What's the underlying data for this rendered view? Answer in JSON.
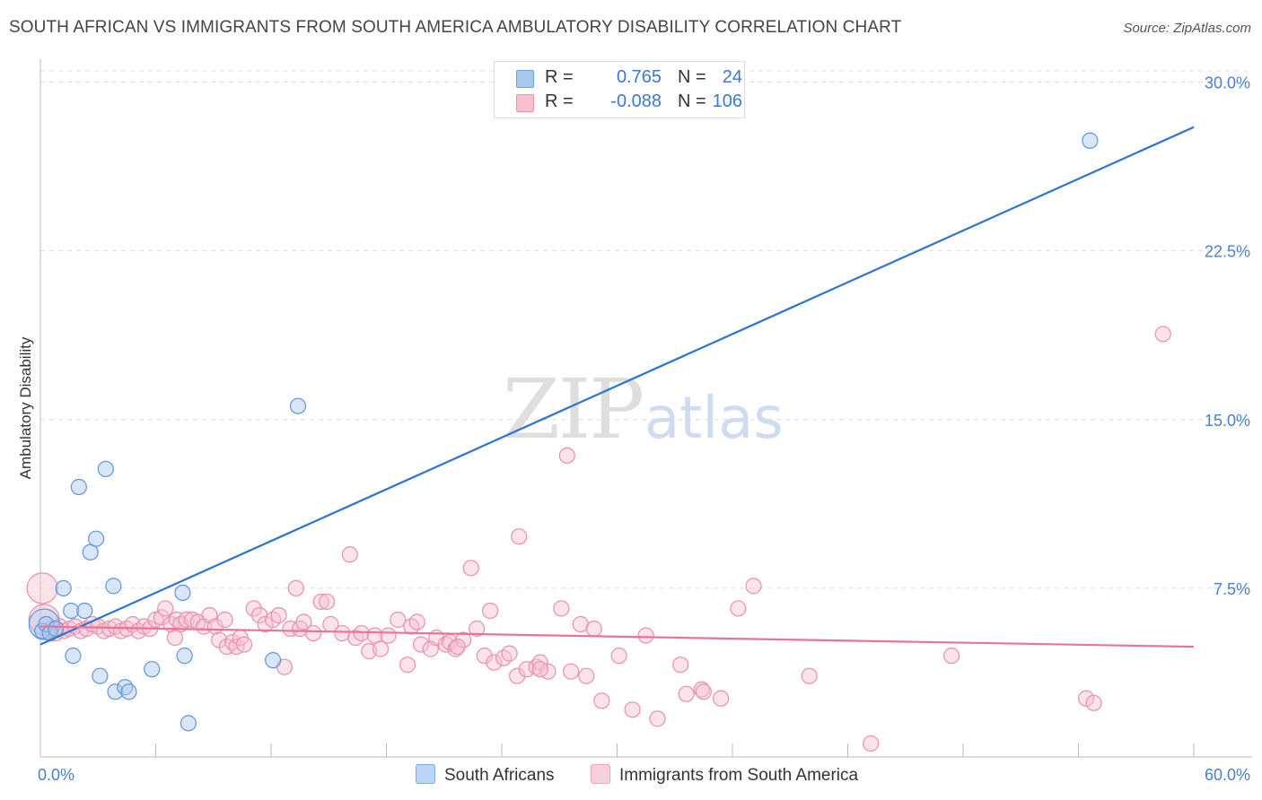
{
  "title": "SOUTH AFRICAN VS IMMIGRANTS FROM SOUTH AMERICA AMBULATORY DISABILITY CORRELATION CHART",
  "source": "Source: ZipAtlas.com",
  "watermark": {
    "zip": "ZIP",
    "atlas": "atlas"
  },
  "legend": {
    "r_label": "R =",
    "n_label": "N =",
    "rows": [
      {
        "r": "0.765",
        "n": "24",
        "color": "#a9c8f0",
        "border": "#6f9fe0"
      },
      {
        "r": "-0.088",
        "n": "106",
        "color": "#f7bfd0",
        "border": "#ee93ae"
      }
    ]
  },
  "bottom_legend": [
    {
      "label": "South Africans",
      "color": "#bcd4f5",
      "border": "#7ea8e6"
    },
    {
      "label": "Immigrants from South America",
      "color": "#f9cfdb",
      "border": "#f0a3bb"
    }
  ],
  "chart_data": {
    "type": "scatter",
    "title": "SOUTH AFRICAN VS IMMIGRANTS FROM SOUTH AMERICA AMBULATORY DISABILITY CORRELATION CHART",
    "xlabel": "",
    "ylabel": "Ambulatory Disability",
    "xlim": [
      0,
      60
    ],
    "ylim": [
      0,
      30.5
    ],
    "x_tick_labels": [
      "0.0%",
      "60.0%"
    ],
    "y_ticks": [
      7.5,
      15.0,
      22.5,
      30.0
    ],
    "y_tick_labels": [
      "7.5%",
      "15.0%",
      "22.5%",
      "30.0%"
    ],
    "colors": {
      "blue_fill": "#a9c8f0",
      "blue_stroke": "#5f95db",
      "blue_line": "#2c74d0",
      "pink_fill": "#f7c0d1",
      "pink_stroke": "#ea8fac",
      "pink_line": "#e7739c",
      "grid": "#dcdcdc",
      "axis": "#bbbbbb"
    },
    "series": [
      {
        "name": "South Africans",
        "color": "blue",
        "trend": {
          "x0": 0,
          "y0": 5.0,
          "x1": 60,
          "y1": 28.0
        },
        "points": [
          [
            0.1,
            5.6
          ],
          [
            0.3,
            5.9
          ],
          [
            0.5,
            5.5
          ],
          [
            0.8,
            5.7
          ],
          [
            1.2,
            7.5
          ],
          [
            1.6,
            6.5
          ],
          [
            1.7,
            4.5
          ],
          [
            2.0,
            12.0
          ],
          [
            2.3,
            6.5
          ],
          [
            2.6,
            9.1
          ],
          [
            2.9,
            9.7
          ],
          [
            3.1,
            3.6
          ],
          [
            3.4,
            12.8
          ],
          [
            3.8,
            7.6
          ],
          [
            3.9,
            2.9
          ],
          [
            4.4,
            3.1
          ],
          [
            4.6,
            2.9
          ],
          [
            5.8,
            3.9
          ],
          [
            7.4,
            7.3
          ],
          [
            7.5,
            4.5
          ],
          [
            7.7,
            1.5
          ],
          [
            12.1,
            4.3
          ],
          [
            13.4,
            15.6
          ],
          [
            54.6,
            27.4
          ]
        ],
        "big_points": [
          [
            0.2,
            5.9
          ]
        ]
      },
      {
        "name": "Immigrants from South America",
        "color": "pink",
        "trend": {
          "x0": 0,
          "y0": 5.8,
          "x1": 60,
          "y1": 4.9
        },
        "points": [
          [
            0.6,
            5.7
          ],
          [
            0.8,
            5.5
          ],
          [
            1.0,
            5.8
          ],
          [
            1.2,
            5.6
          ],
          [
            1.5,
            5.7
          ],
          [
            1.8,
            5.8
          ],
          [
            2.1,
            5.6
          ],
          [
            2.4,
            5.7
          ],
          [
            2.7,
            5.9
          ],
          [
            3.0,
            5.8
          ],
          [
            3.3,
            5.6
          ],
          [
            3.6,
            5.7
          ],
          [
            3.9,
            5.8
          ],
          [
            4.2,
            5.6
          ],
          [
            4.5,
            5.7
          ],
          [
            4.8,
            5.9
          ],
          [
            5.1,
            5.6
          ],
          [
            5.4,
            5.8
          ],
          [
            5.7,
            5.7
          ],
          [
            6.0,
            6.1
          ],
          [
            6.3,
            6.2
          ],
          [
            6.5,
            6.6
          ],
          [
            6.8,
            5.9
          ],
          [
            7.0,
            5.3
          ],
          [
            7.1,
            6.1
          ],
          [
            7.3,
            5.9
          ],
          [
            7.6,
            6.1
          ],
          [
            7.9,
            6.1
          ],
          [
            8.2,
            6.0
          ],
          [
            8.5,
            5.8
          ],
          [
            8.8,
            6.3
          ],
          [
            9.1,
            5.8
          ],
          [
            9.3,
            5.2
          ],
          [
            9.6,
            6.1
          ],
          [
            9.7,
            4.9
          ],
          [
            10.0,
            5.1
          ],
          [
            10.2,
            4.9
          ],
          [
            10.4,
            5.3
          ],
          [
            10.6,
            5.0
          ],
          [
            11.1,
            6.6
          ],
          [
            11.4,
            6.3
          ],
          [
            11.7,
            5.9
          ],
          [
            12.1,
            6.1
          ],
          [
            12.4,
            6.3
          ],
          [
            12.7,
            4.0
          ],
          [
            13.0,
            5.7
          ],
          [
            13.3,
            7.5
          ],
          [
            13.5,
            5.7
          ],
          [
            13.7,
            6.0
          ],
          [
            14.2,
            5.5
          ],
          [
            14.6,
            6.9
          ],
          [
            14.9,
            6.9
          ],
          [
            15.1,
            5.9
          ],
          [
            15.7,
            5.5
          ],
          [
            16.1,
            9.0
          ],
          [
            16.4,
            5.3
          ],
          [
            16.7,
            5.5
          ],
          [
            17.1,
            4.7
          ],
          [
            17.4,
            5.4
          ],
          [
            17.7,
            4.8
          ],
          [
            18.1,
            5.4
          ],
          [
            18.6,
            6.1
          ],
          [
            19.1,
            4.1
          ],
          [
            19.3,
            5.8
          ],
          [
            19.6,
            6.0
          ],
          [
            19.8,
            5.0
          ],
          [
            20.3,
            4.8
          ],
          [
            20.6,
            5.3
          ],
          [
            21.1,
            5.0
          ],
          [
            21.3,
            5.1
          ],
          [
            21.6,
            4.8
          ],
          [
            22.0,
            5.2
          ],
          [
            22.4,
            8.4
          ],
          [
            22.7,
            5.7
          ],
          [
            23.1,
            4.5
          ],
          [
            23.4,
            6.5
          ],
          [
            23.6,
            4.2
          ],
          [
            24.1,
            4.4
          ],
          [
            24.4,
            4.6
          ],
          [
            24.8,
            3.6
          ],
          [
            24.9,
            9.8
          ],
          [
            25.3,
            3.9
          ],
          [
            25.8,
            4.0
          ],
          [
            26.0,
            4.2
          ],
          [
            26.4,
            3.8
          ],
          [
            27.1,
            6.6
          ],
          [
            27.6,
            3.8
          ],
          [
            28.1,
            5.9
          ],
          [
            28.4,
            3.6
          ],
          [
            28.8,
            5.7
          ],
          [
            29.2,
            2.5
          ],
          [
            30.1,
            4.5
          ],
          [
            30.8,
            2.1
          ],
          [
            31.5,
            5.4
          ],
          [
            32.1,
            1.7
          ],
          [
            33.3,
            4.1
          ],
          [
            34.4,
            3.0
          ],
          [
            35.4,
            2.6
          ],
          [
            36.3,
            6.6
          ],
          [
            37.1,
            7.6
          ],
          [
            40.0,
            3.6
          ],
          [
            43.2,
            0.6
          ],
          [
            47.4,
            4.5
          ],
          [
            54.4,
            2.6
          ],
          [
            54.8,
            2.4
          ],
          [
            58.4,
            18.8
          ]
        ],
        "extra_points": [
          [
            27.4,
            13.4
          ],
          [
            33.6,
            2.8
          ],
          [
            34.5,
            2.9
          ],
          [
            26.0,
            3.9
          ],
          [
            21.7,
            4.9
          ]
        ],
        "big_points": [
          [
            0.1,
            7.5
          ],
          [
            0.2,
            6.1
          ]
        ]
      }
    ]
  }
}
